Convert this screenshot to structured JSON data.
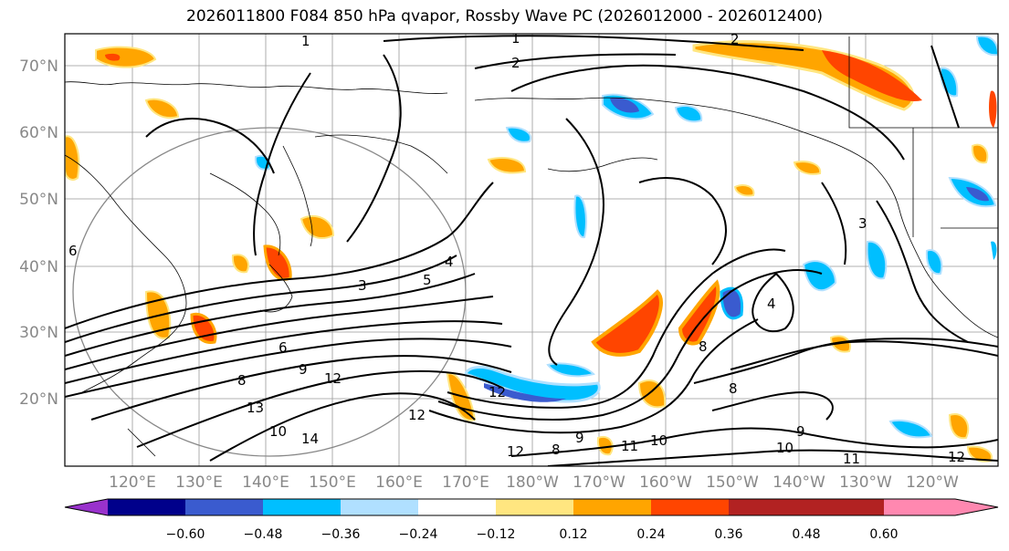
{
  "title": "2026011800 F084 850 hPa qvapor, Rossby Wave PC (2026012000 - 2026012400)",
  "map": {
    "lat_labels": [
      "70°N",
      "60°N",
      "50°N",
      "40°N",
      "30°N",
      "20°N"
    ],
    "lon_labels": [
      "120°E",
      "130°E",
      "140°E",
      "150°E",
      "160°E",
      "170°E",
      "180°W",
      "170°W",
      "160°W",
      "150°W",
      "140°W",
      "130°W",
      "120°W"
    ],
    "contour_labels": [
      "1",
      "1",
      "2",
      "2",
      "3",
      "4",
      "5",
      "6",
      "8",
      "9",
      "12",
      "13",
      "10",
      "14",
      "12",
      "12",
      "8",
      "9",
      "11",
      "10",
      "10",
      "9",
      "11",
      "12",
      "8",
      "8",
      "6",
      "3",
      "4",
      "12"
    ]
  },
  "colorbar": {
    "ticks": [
      "−0.60",
      "−0.48",
      "−0.36",
      "−0.24",
      "−0.12",
      "0.12",
      "0.24",
      "0.36",
      "0.48",
      "0.60"
    ],
    "colors": [
      "#9932cc",
      "#00008b",
      "#3a5bcf",
      "#00bfff",
      "#b0e0ff",
      "#ffffff",
      "#ffe680",
      "#ffa500",
      "#ff4500",
      "#b22222",
      "#ff88b0"
    ]
  }
}
